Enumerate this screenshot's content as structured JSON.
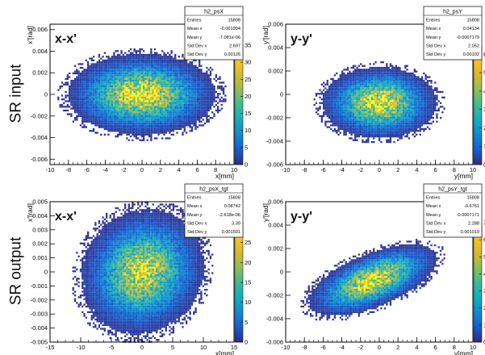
{
  "row_labels": [
    "SR input",
    "SR output"
  ],
  "palette": [
    "#352a87",
    "#1460d2",
    "#0f8bd2",
    "#12aebe",
    "#3bbc95",
    "#8bbf5a",
    "#d2ba2e",
    "#f9c22c",
    "#f9fb0e"
  ],
  "chart_data": [
    {
      "type": "heatmap",
      "panel_label": "x-x'",
      "xlabel": "x[mm]",
      "ylabel": "x'[rad]",
      "xlim": [
        -10,
        10
      ],
      "ylim": [
        -0.0065,
        0.0065
      ],
      "xticks": [
        -10,
        -8,
        -6,
        -4,
        -2,
        0,
        2,
        4,
        6,
        8,
        10
      ],
      "yticks": [
        -0.006,
        -0.004,
        -0.002,
        0,
        0.002,
        0.004,
        0.006
      ],
      "color_scale": {
        "min": 0,
        "max": 35,
        "ticks": [
          0,
          5,
          10,
          15,
          20,
          25,
          30,
          35
        ]
      },
      "distribution": {
        "mean_x": -0.001994,
        "mean_y": -7.081e-06,
        "std_x": 2.697,
        "std_y": 0.00126,
        "correlation": 0.0,
        "peak": 35
      },
      "stats_box": {
        "title": "h2_psX",
        "rows": [
          {
            "label": "Entries",
            "value": "15808"
          },
          {
            "label": "Mean x",
            "value": "-0.001994"
          },
          {
            "label": "Mean y",
            "value": "-7.081e-06"
          },
          {
            "label": "Std Dev x",
            "value": "2.697"
          },
          {
            "label": "Std Dev y",
            "value": "0.00126"
          }
        ]
      }
    },
    {
      "type": "heatmap",
      "panel_label": "y-y'",
      "xlabel": "y[mm]",
      "ylabel": "y'[rad]",
      "xlim": [
        -10,
        10
      ],
      "ylim": [
        -0.006,
        0.006
      ],
      "xticks": [
        -10,
        -8,
        -6,
        -4,
        -2,
        0,
        2,
        4,
        6,
        8,
        10
      ],
      "yticks": [
        -0.006,
        -0.004,
        -0.002,
        0,
        0.002,
        0.004,
        0.006
      ],
      "color_scale": {
        "min": 0,
        "max": 65,
        "ticks": [
          0,
          10,
          20,
          30,
          40,
          50,
          60
        ]
      },
      "distribution": {
        "mean_x": 0.04134,
        "mean_y": -0.0007179,
        "std_x": 2.052,
        "std_y": 0.00102,
        "correlation": 0.0,
        "peak": 65
      },
      "stats_box": {
        "title": "h2_psY",
        "rows": [
          {
            "label": "Entries",
            "value": "15808"
          },
          {
            "label": "Mean x",
            "value": "0.04134"
          },
          {
            "label": "Mean y",
            "value": "-0.0007179"
          },
          {
            "label": "Std Dev x",
            "value": "2.052"
          },
          {
            "label": "Std Dev y",
            "value": "0.00102"
          }
        ]
      }
    },
    {
      "type": "heatmap",
      "panel_label": "x-x'",
      "xlabel": "x[mm]",
      "ylabel": "x'[rad]",
      "xlim": [
        -15,
        15
      ],
      "ylim": [
        -0.005,
        0.005
      ],
      "xticks": [
        -15,
        -10,
        -5,
        0,
        5,
        10,
        15
      ],
      "yticks": [
        -0.005,
        -0.004,
        -0.003,
        -0.002,
        -0.001,
        0,
        0.001,
        0.002,
        0.003,
        0.004,
        0.005
      ],
      "color_scale": {
        "min": 0,
        "max": 30,
        "ticks": [
          0,
          5,
          10,
          15,
          20,
          25
        ]
      },
      "distribution": {
        "mean_x": 0.08742,
        "mean_y": -2.618e-06,
        "std_x": 3.39,
        "std_y": 0.001501,
        "correlation": 0.1,
        "peak": 27
      },
      "stats_box": {
        "title": "h2_psX_tgt",
        "rows": [
          {
            "label": "Entries",
            "value": "15808"
          },
          {
            "label": "Mean x",
            "value": "0.08742"
          },
          {
            "label": "Mean y",
            "value": "-2.618e-06"
          },
          {
            "label": "Std Dev x",
            "value": "3.39"
          },
          {
            "label": "Std Dev y",
            "value": "0.001501"
          }
        ]
      }
    },
    {
      "type": "heatmap",
      "panel_label": "y-y'",
      "xlabel": "y[mm]",
      "ylabel": "y'[rad]",
      "xlim": [
        -10,
        10
      ],
      "ylim": [
        -0.006,
        0.006
      ],
      "xticks": [
        -10,
        -8,
        -6,
        -4,
        -2,
        0,
        2,
        4,
        6,
        8,
        10
      ],
      "yticks": [
        -0.006,
        -0.004,
        -0.002,
        0,
        0.002,
        0.004,
        0.006
      ],
      "color_scale": {
        "min": 0,
        "max": 70,
        "ticks": [
          0,
          10,
          20,
          30,
          40,
          50,
          60,
          70
        ]
      },
      "distribution": {
        "mean_x": -0.6761,
        "mean_y": -0.0007171,
        "std_x": 2.288,
        "std_y": 0.001019,
        "correlation": 0.6,
        "peak": 70
      },
      "stats_box": {
        "title": "h2_psY_tgt",
        "rows": [
          {
            "label": "Entries",
            "value": "15808"
          },
          {
            "label": "Mean x",
            "value": "-0.6761"
          },
          {
            "label": "Mean y",
            "value": "-0.0007171"
          },
          {
            "label": "Std Dev x",
            "value": "2.288"
          },
          {
            "label": "Std Dev y",
            "value": "0.001019"
          }
        ]
      }
    }
  ]
}
